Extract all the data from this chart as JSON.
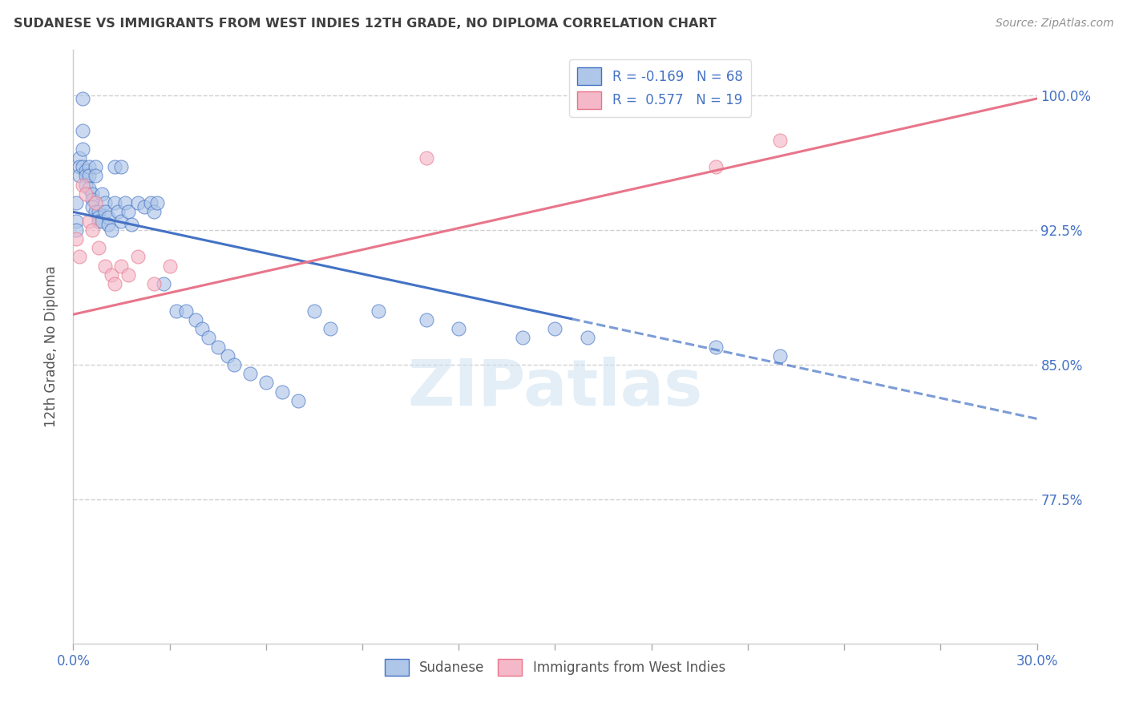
{
  "title": "SUDANESE VS IMMIGRANTS FROM WEST INDIES 12TH GRADE, NO DIPLOMA CORRELATION CHART",
  "source": "Source: ZipAtlas.com",
  "ylabel": "12th Grade, No Diploma",
  "ytick_labels": [
    "100.0%",
    "92.5%",
    "85.0%",
    "77.5%"
  ],
  "ytick_values": [
    1.0,
    0.925,
    0.85,
    0.775
  ],
  "xlim": [
    0.0,
    0.3
  ],
  "ylim": [
    0.695,
    1.025
  ],
  "blue_scatter_x": [
    0.001,
    0.001,
    0.001,
    0.002,
    0.002,
    0.002,
    0.003,
    0.003,
    0.003,
    0.003,
    0.004,
    0.004,
    0.004,
    0.005,
    0.005,
    0.005,
    0.006,
    0.006,
    0.006,
    0.007,
    0.007,
    0.007,
    0.008,
    0.008,
    0.008,
    0.009,
    0.009,
    0.01,
    0.01,
    0.011,
    0.011,
    0.012,
    0.013,
    0.013,
    0.014,
    0.015,
    0.015,
    0.016,
    0.017,
    0.018,
    0.02,
    0.022,
    0.024,
    0.025,
    0.026,
    0.028,
    0.032,
    0.035,
    0.038,
    0.04,
    0.042,
    0.045,
    0.048,
    0.05,
    0.055,
    0.06,
    0.065,
    0.07,
    0.075,
    0.08,
    0.095,
    0.11,
    0.12,
    0.14,
    0.15,
    0.16,
    0.2,
    0.22
  ],
  "blue_scatter_y": [
    0.94,
    0.93,
    0.925,
    0.965,
    0.96,
    0.955,
    0.998,
    0.98,
    0.97,
    0.96,
    0.958,
    0.955,
    0.95,
    0.96,
    0.955,
    0.948,
    0.945,
    0.942,
    0.938,
    0.96,
    0.955,
    0.935,
    0.935,
    0.932,
    0.93,
    0.945,
    0.93,
    0.94,
    0.935,
    0.932,
    0.928,
    0.925,
    0.96,
    0.94,
    0.935,
    0.96,
    0.93,
    0.94,
    0.935,
    0.928,
    0.94,
    0.938,
    0.94,
    0.935,
    0.94,
    0.895,
    0.88,
    0.88,
    0.875,
    0.87,
    0.865,
    0.86,
    0.855,
    0.85,
    0.845,
    0.84,
    0.835,
    0.83,
    0.88,
    0.87,
    0.88,
    0.875,
    0.87,
    0.865,
    0.87,
    0.865,
    0.86,
    0.855
  ],
  "pink_scatter_x": [
    0.001,
    0.002,
    0.003,
    0.004,
    0.005,
    0.006,
    0.007,
    0.008,
    0.01,
    0.012,
    0.013,
    0.015,
    0.017,
    0.02,
    0.025,
    0.03,
    0.11,
    0.2,
    0.22
  ],
  "pink_scatter_y": [
    0.92,
    0.91,
    0.95,
    0.945,
    0.93,
    0.925,
    0.94,
    0.915,
    0.905,
    0.9,
    0.895,
    0.905,
    0.9,
    0.91,
    0.895,
    0.905,
    0.965,
    0.96,
    0.975
  ],
  "blue_line_x0": 0.0,
  "blue_line_y0": 0.935,
  "blue_line_x1": 0.3,
  "blue_line_y1": 0.82,
  "blue_line_solid_end": 0.155,
  "pink_line_x0": 0.0,
  "pink_line_y0": 0.878,
  "pink_line_x1": 0.3,
  "pink_line_y1": 0.998,
  "R_blue": -0.169,
  "N_blue": 68,
  "R_pink": 0.577,
  "N_pink": 19,
  "blue_color": "#aec6e8",
  "blue_edge_color": "#4472c4",
  "pink_color": "#f4b8c8",
  "pink_edge_color": "#e8758a",
  "watermark": "ZIPatlas",
  "grid_color": "#d0d0d0",
  "title_color": "#404040",
  "tick_color": "#4472c4",
  "source_color": "#909090"
}
